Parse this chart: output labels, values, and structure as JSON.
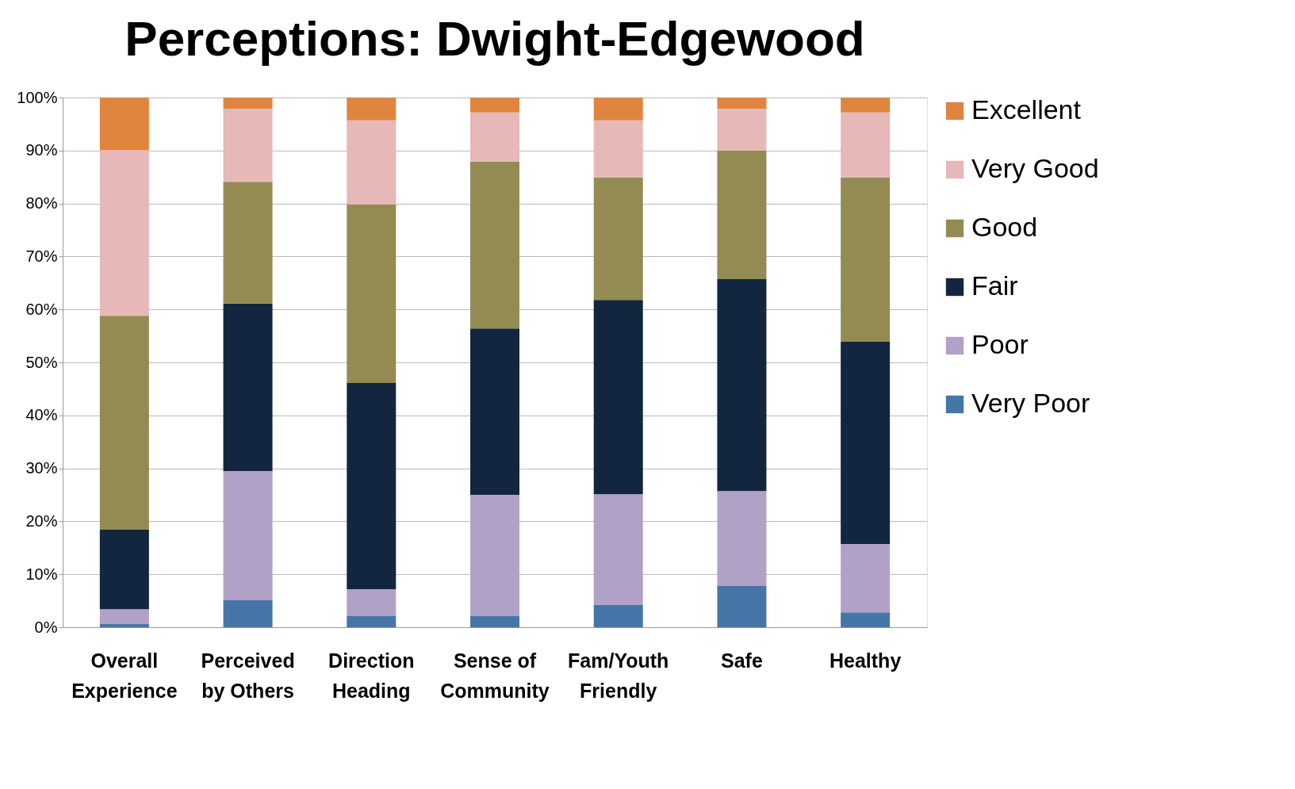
{
  "chart_data": {
    "type": "bar",
    "title": "Perceptions: Dwight-Edgewood",
    "stacked": true,
    "grid": "y",
    "legend": "right",
    "categories": [
      "Overall\nExperience",
      "Perceived\nby Others",
      "Direction\nHeading",
      "Sense of\nCommunity",
      "Fam/Youth\nFriendly",
      "Safe",
      "Healthy"
    ],
    "ylim": [
      0,
      100
    ],
    "yticks": [
      {
        "value": 0,
        "label": "0%"
      },
      {
        "value": 10,
        "label": "10%"
      },
      {
        "value": 20,
        "label": "20%"
      },
      {
        "value": 30,
        "label": "30%"
      },
      {
        "value": 40,
        "label": "40%"
      },
      {
        "value": 50,
        "label": "50%"
      },
      {
        "value": 60,
        "label": "60%"
      },
      {
        "value": 70,
        "label": "70%"
      },
      {
        "value": 80,
        "label": "80%"
      },
      {
        "value": 90,
        "label": "90%"
      },
      {
        "value": 100,
        "label": "100%"
      }
    ],
    "series": [
      {
        "name": "Very Poor",
        "color": "#4676a8",
        "values": [
          0.6,
          5.1,
          2.1,
          2.1,
          4.2,
          7.8,
          2.8
        ]
      },
      {
        "name": "Poor",
        "color": "#b2a1c7",
        "values": [
          2.8,
          24.4,
          5.1,
          22.9,
          20.9,
          17.9,
          12.9
        ]
      },
      {
        "name": "Fair",
        "color": "#13263f",
        "values": [
          15.0,
          31.6,
          38.9,
          31.4,
          36.7,
          40.0,
          38.2
        ]
      },
      {
        "name": "Good",
        "color": "#938b52",
        "values": [
          40.4,
          23.0,
          33.7,
          31.5,
          23.1,
          24.3,
          31.0
        ]
      },
      {
        "name": "Very Good",
        "color": "#e6b8b7",
        "values": [
          31.3,
          13.8,
          15.9,
          9.3,
          10.8,
          7.9,
          12.3
        ]
      },
      {
        "name": "Excellent",
        "color": "#e0853f",
        "values": [
          9.9,
          2.1,
          4.3,
          2.8,
          4.3,
          2.1,
          2.8
        ]
      }
    ]
  }
}
